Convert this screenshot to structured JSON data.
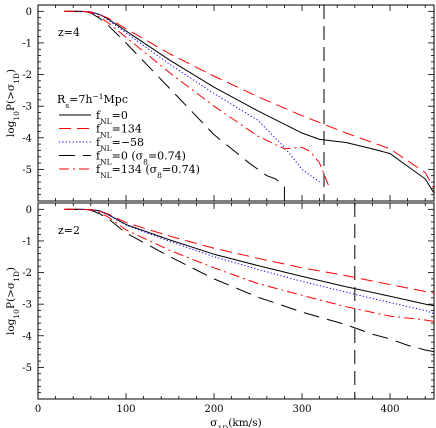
{
  "chart_data": [
    {
      "type": "line",
      "panel": "top",
      "annotation": "z=4",
      "ylabel": "log10P(>σ1D)",
      "xlim": [
        0,
        450
      ],
      "ylim": [
        -6,
        0.2
      ],
      "yticks": [
        0,
        -1,
        -2,
        -3,
        -4,
        -5
      ],
      "vline": 325,
      "legend": {
        "header": "Rs=7h−1Mpc",
        "placement": "center-left",
        "entries": [
          {
            "label": "fNL=0",
            "series": 0
          },
          {
            "label": "fNL=134",
            "series": 1
          },
          {
            "label": "fNL=−58",
            "series": 2
          },
          {
            "label": "fNL=0 (σ8=0.74)",
            "series": 3
          },
          {
            "label": "fNL=134 (σ8=0.74)",
            "series": 4
          }
        ]
      },
      "series": [
        {
          "name": "fNL=0",
          "color": "#000000",
          "dash": "solid",
          "x": [
            30,
            50,
            60,
            70,
            80,
            100,
            150,
            200,
            250,
            300,
            320,
            350,
            380,
            400,
            420,
            440,
            450
          ],
          "y": [
            0,
            0,
            -0.02,
            -0.1,
            -0.25,
            -0.62,
            -1.55,
            -2.4,
            -3.15,
            -3.85,
            -4.05,
            -4.15,
            -4.35,
            -4.5,
            -4.9,
            -5.3,
            -5.75
          ]
        },
        {
          "name": "fNL=134",
          "color": "#ff0000",
          "dash": "long-dash",
          "x": [
            30,
            50,
            60,
            70,
            80,
            100,
            150,
            200,
            250,
            300,
            350,
            400,
            440,
            450
          ],
          "y": [
            0,
            0,
            -0.02,
            -0.1,
            -0.22,
            -0.55,
            -1.35,
            -2.05,
            -2.7,
            -3.3,
            -3.85,
            -4.35,
            -5.1,
            -5.6
          ]
        },
        {
          "name": "fNL=−58",
          "color": "#0000ff",
          "dash": "dotted",
          "x": [
            30,
            50,
            60,
            70,
            80,
            100,
            150,
            200,
            250,
            280,
            300,
            320
          ],
          "y": [
            0,
            0,
            -0.02,
            -0.1,
            -0.28,
            -0.68,
            -1.68,
            -2.6,
            -3.45,
            -4.3,
            -5,
            -5.4
          ]
        },
        {
          "name": "fNL=0 (σ8=0.74)",
          "color": "#000000",
          "dash": "long-dash-gap",
          "x": [
            30,
            50,
            60,
            70,
            80,
            100,
            150,
            200,
            240,
            260,
            270,
            280,
            280
          ],
          "y": [
            0,
            0,
            -0.05,
            -0.22,
            -0.45,
            -1,
            -2.45,
            -3.9,
            -4.8,
            -5.2,
            -5.3,
            -5.55,
            -6
          ]
        },
        {
          "name": "fNL=134 (σ8=0.74)",
          "color": "#ff0000",
          "dash": "dash-dot",
          "x": [
            30,
            50,
            60,
            70,
            80,
            100,
            150,
            200,
            250,
            280,
            300,
            310,
            320,
            330
          ],
          "y": [
            0,
            0,
            -0.04,
            -0.18,
            -0.37,
            -0.82,
            -1.95,
            -3,
            -3.95,
            -4.35,
            -4.3,
            -4.45,
            -4.8,
            -5.5
          ]
        }
      ]
    },
    {
      "type": "line",
      "panel": "bottom",
      "annotation": "z=2",
      "ylabel": "log10P(>σ1D)",
      "xlabel": "σ1D(km/s)",
      "xlim": [
        0,
        450
      ],
      "ylim": [
        -6,
        0.2
      ],
      "xticks": [
        0,
        100,
        200,
        300,
        400
      ],
      "yticks": [
        0,
        -1,
        -2,
        -3,
        -4,
        -5
      ],
      "vline": 360,
      "series": [
        {
          "name": "fNL=0",
          "color": "#000000",
          "dash": "solid",
          "x": [
            30,
            50,
            60,
            70,
            80,
            100,
            150,
            200,
            250,
            300,
            350,
            400,
            440,
            450
          ],
          "y": [
            0,
            0,
            -0.01,
            -0.05,
            -0.17,
            -0.48,
            -0.97,
            -1.42,
            -1.78,
            -2.12,
            -2.45,
            -2.75,
            -3,
            -3.05
          ]
        },
        {
          "name": "fNL=134",
          "color": "#ff0000",
          "dash": "long-dash",
          "x": [
            30,
            50,
            60,
            70,
            80,
            100,
            150,
            200,
            250,
            300,
            350,
            400,
            440,
            450
          ],
          "y": [
            0,
            0,
            -0.01,
            -0.05,
            -0.15,
            -0.42,
            -0.85,
            -1.23,
            -1.55,
            -1.85,
            -2.1,
            -2.38,
            -2.6,
            -2.65
          ]
        },
        {
          "name": "fNL=−58",
          "color": "#0000ff",
          "dash": "dotted",
          "x": [
            30,
            50,
            60,
            70,
            80,
            100,
            150,
            200,
            250,
            300,
            350,
            400,
            440,
            450
          ],
          "y": [
            0,
            0,
            -0.01,
            -0.05,
            -0.18,
            -0.5,
            -1.02,
            -1.5,
            -1.9,
            -2.28,
            -2.62,
            -2.95,
            -3.2,
            -3.3
          ]
        },
        {
          "name": "fNL=0 (σ8=0.74)",
          "color": "#000000",
          "dash": "long-dash-gap",
          "x": [
            30,
            50,
            60,
            70,
            80,
            100,
            150,
            200,
            250,
            300,
            350,
            380,
            400,
            420,
            440,
            450
          ],
          "y": [
            0,
            0,
            -0.03,
            -0.14,
            -0.3,
            -0.75,
            -1.5,
            -2.2,
            -2.78,
            -3.25,
            -3.65,
            -3.95,
            -4.1,
            -4.3,
            -4.45,
            -4.5
          ]
        },
        {
          "name": "fNL=134 (σ8=0.74)",
          "color": "#ff0000",
          "dash": "dash-dot",
          "x": [
            30,
            50,
            60,
            70,
            80,
            100,
            150,
            200,
            250,
            300,
            350,
            400,
            440,
            450
          ],
          "y": [
            0,
            0,
            -0.02,
            -0.1,
            -0.25,
            -0.65,
            -1.3,
            -1.85,
            -2.35,
            -2.72,
            -3.08,
            -3.38,
            -3.5,
            -3.55
          ]
        }
      ]
    }
  ]
}
